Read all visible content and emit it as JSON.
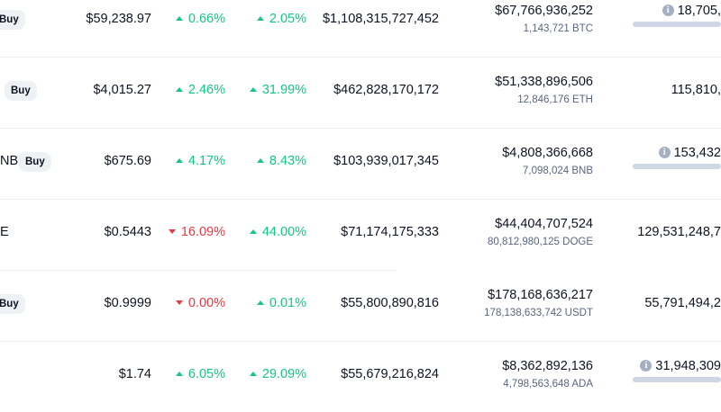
{
  "buy_label": "Buy",
  "rows": [
    {
      "ticker": "",
      "show_buy": true,
      "price": "$59,238.97",
      "change_1h": {
        "value": "0.66%",
        "direction": "up"
      },
      "change_24h": {
        "value": "2.05%",
        "direction": "up"
      },
      "market_cap": "$1,108,315,727,452",
      "volume_usd": "$67,766,936,252",
      "volume_coin": "1,143,721 BTC",
      "supply": "18,705,",
      "supply_info": true,
      "supply_bar": true
    },
    {
      "ticker": "",
      "show_buy": true,
      "price": "$4,015.27",
      "change_1h": {
        "value": "2.46%",
        "direction": "up"
      },
      "change_24h": {
        "value": "31.99%",
        "direction": "up"
      },
      "market_cap": "$462,828,170,172",
      "volume_usd": "$51,338,896,506",
      "volume_coin": "12,846,176 ETH",
      "supply": "115,810,",
      "supply_info": false,
      "supply_bar": false
    },
    {
      "ticker": "NB",
      "show_buy": true,
      "price": "$675.69",
      "change_1h": {
        "value": "4.17%",
        "direction": "up"
      },
      "change_24h": {
        "value": "8.43%",
        "direction": "up"
      },
      "market_cap": "$103,939,017,345",
      "volume_usd": "$4,808,366,668",
      "volume_coin": "7,098,024 BNB",
      "supply": "153,432",
      "supply_info": true,
      "supply_bar": true
    },
    {
      "ticker": "E",
      "show_buy": false,
      "price": "$0.5443",
      "change_1h": {
        "value": "16.09%",
        "direction": "down"
      },
      "change_24h": {
        "value": "44.00%",
        "direction": "up"
      },
      "market_cap": "$71,174,175,333",
      "volume_usd": "$44,404,707,524",
      "volume_coin": "80,812,980,125 DOGE",
      "supply": "129,531,248,7",
      "supply_info": false,
      "supply_bar": false
    },
    {
      "ticker": "",
      "show_buy": true,
      "price": "$0.9999",
      "change_1h": {
        "value": "0.00%",
        "direction": "down"
      },
      "change_24h": {
        "value": "0.01%",
        "direction": "up"
      },
      "market_cap": "$55,800,890,816",
      "volume_usd": "$178,168,636,217",
      "volume_coin": "178,138,633,742 USDT",
      "supply": "55,791,494,2",
      "supply_info": false,
      "supply_bar": false
    },
    {
      "ticker": "",
      "show_buy": false,
      "price": "$1.74",
      "change_1h": {
        "value": "6.05%",
        "direction": "up"
      },
      "change_24h": {
        "value": "29.09%",
        "direction": "up"
      },
      "market_cap": "$55,679,216,824",
      "volume_usd": "$8,362,892,136",
      "volume_coin": "4,798,563,648 ADA",
      "supply": "31,948,309",
      "supply_info": true,
      "supply_bar": true
    }
  ]
}
